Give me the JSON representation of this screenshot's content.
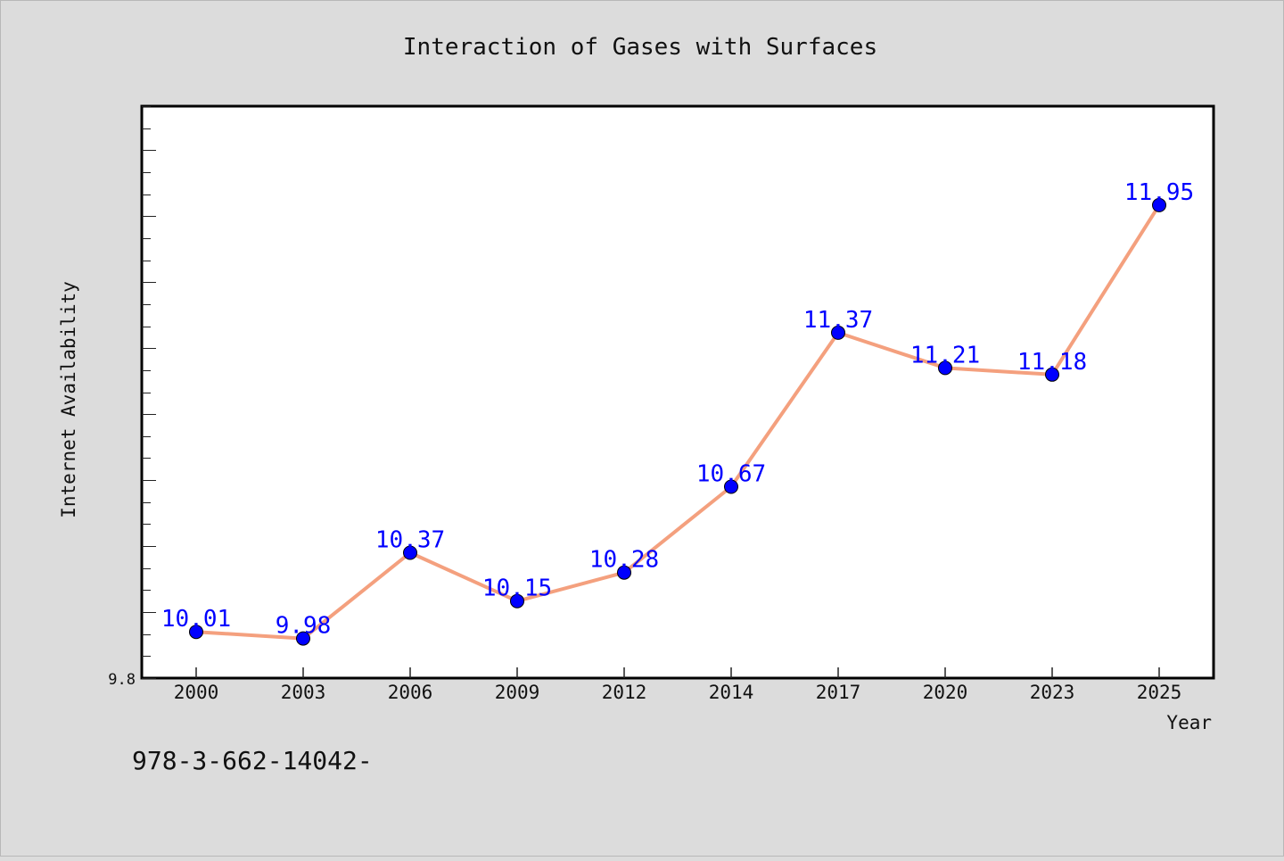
{
  "chart_data": {
    "type": "line",
    "title": "Interaction of Gases with Surfaces",
    "xlabel": "Year",
    "ylabel": "Internet Availability",
    "categories": [
      "2000",
      "2003",
      "2006",
      "2009",
      "2012",
      "2014",
      "2017",
      "2020",
      "2023",
      "2025"
    ],
    "series": [
      {
        "values": [
          10.01,
          9.98,
          10.37,
          10.15,
          10.28,
          10.67,
          11.37,
          11.21,
          11.18,
          11.95
        ]
      }
    ],
    "data_labels": [
      "10.01",
      "9.98",
      "10.37",
      "10.15",
      "10.28",
      "10.67",
      "11.37",
      "11.21",
      "11.18",
      "11.95"
    ],
    "y_tick_label": "9.8",
    "ylim": [
      9.8,
      12.4
    ],
    "grid": false,
    "legend": "none",
    "colors": {
      "line": "#f4a07e",
      "marker": "#0000ff",
      "data_label": "#0000ff",
      "background": "#dcdcdc",
      "plot_area": "#ffffff"
    }
  },
  "footer": {
    "isbn_text": "978-3-662-14042-"
  }
}
